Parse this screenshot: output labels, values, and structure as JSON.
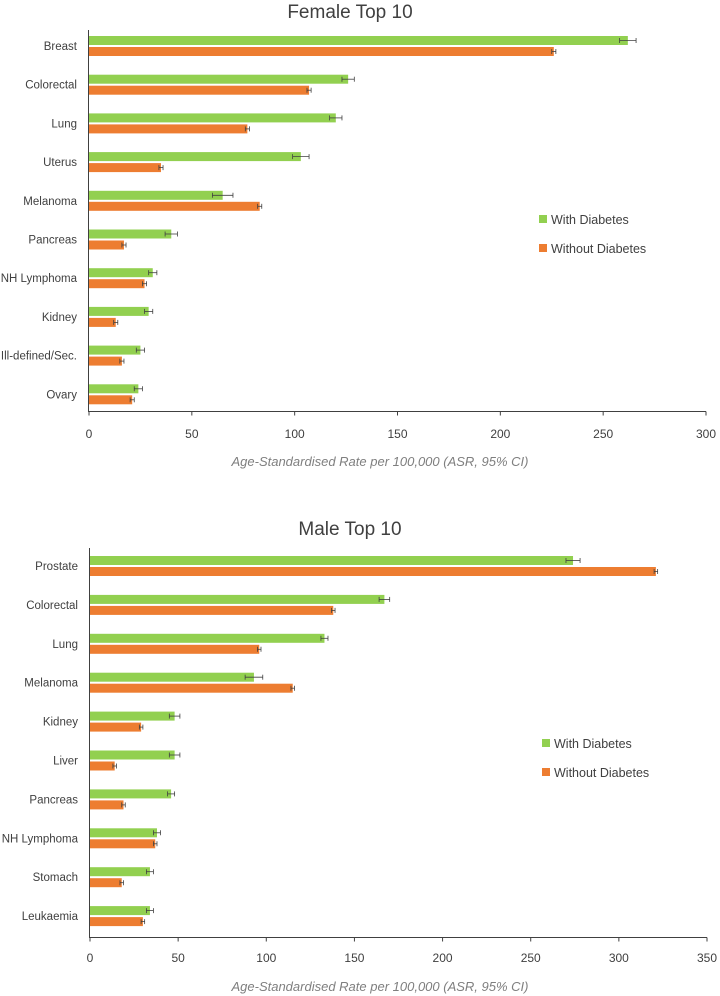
{
  "colors": {
    "with_diabetes": "#92d050",
    "without_diabetes": "#ed7d31",
    "axis": "#404040",
    "errorbar": "#404040"
  },
  "chart_data": [
    {
      "type": "bar",
      "orientation": "horizontal",
      "title": "Female Top 10",
      "xlabel": "Age-Standardised Rate per 100,000 (ASR, 95% CI)",
      "xlim": [
        0,
        300
      ],
      "xticks": [
        0,
        50,
        100,
        150,
        200,
        250,
        300
      ],
      "legend_position": "right",
      "grid": false,
      "categories": [
        "Breast",
        "Colorectal",
        "Lung",
        "Uterus",
        "Melanoma",
        "Pancreas",
        "NH Lymphoma",
        "Kidney",
        "Ill-defined/Sec.",
        "Ovary"
      ],
      "series": [
        {
          "name": "With Diabetes",
          "values": [
            262,
            126,
            120,
            103,
            65,
            40,
            31,
            29,
            25,
            24
          ],
          "ci_low": [
            258,
            123,
            117,
            99,
            60,
            37,
            29,
            27,
            23,
            22
          ],
          "ci_high": [
            266,
            129,
            123,
            107,
            70,
            43,
            33,
            31,
            27,
            26
          ]
        },
        {
          "name": "Without Diabetes",
          "values": [
            226,
            107,
            77,
            35,
            83,
            17,
            27,
            13,
            16,
            21
          ],
          "ci_low": [
            225,
            106,
            76,
            34,
            82,
            16,
            26,
            12,
            15,
            20
          ],
          "ci_high": [
            227,
            108,
            78,
            36,
            84,
            18,
            28,
            14,
            17,
            22
          ]
        }
      ]
    },
    {
      "type": "bar",
      "orientation": "horizontal",
      "title": "Male Top 10",
      "xlabel": "Age-Standardised Rate per 100,000 (ASR, 95% CI)",
      "xlim": [
        0,
        350
      ],
      "xticks": [
        0,
        50,
        100,
        150,
        200,
        250,
        300,
        350
      ],
      "legend_position": "right",
      "grid": false,
      "categories": [
        "Prostate",
        "Colorectal",
        "Lung",
        "Melanoma",
        "Kidney",
        "Liver",
        "Pancreas",
        "NH Lymphoma",
        "Stomach",
        "Leukaemia"
      ],
      "series": [
        {
          "name": "With Diabetes",
          "values": [
            274,
            167,
            133,
            93,
            48,
            48,
            46,
            38,
            34,
            34
          ],
          "ci_low": [
            270,
            164,
            131,
            88,
            45,
            45,
            44,
            36,
            32,
            32
          ],
          "ci_high": [
            278,
            170,
            135,
            98,
            51,
            51,
            48,
            40,
            36,
            36
          ]
        },
        {
          "name": "Without Diabetes",
          "values": [
            321,
            138,
            96,
            115,
            29,
            14,
            19,
            37,
            18,
            30
          ],
          "ci_low": [
            320,
            137,
            95,
            114,
            28,
            13,
            18,
            36,
            17,
            29
          ],
          "ci_high": [
            322,
            139,
            97,
            116,
            30,
            15,
            20,
            38,
            19,
            31
          ]
        }
      ]
    }
  ]
}
